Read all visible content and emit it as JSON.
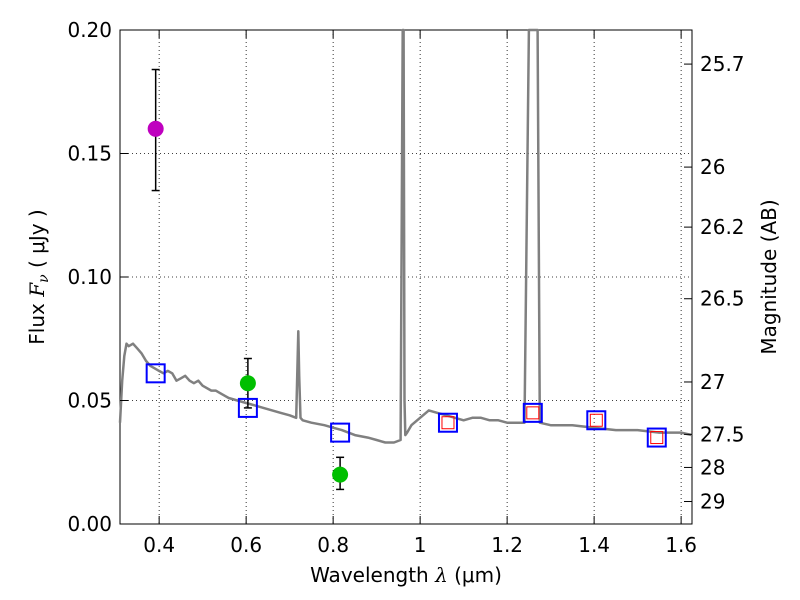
{
  "chart_data": {
    "type": "scatter",
    "xlabel": {
      "prefix": "Wavelength  ",
      "symbol": "λ",
      "suffix": " (μm)"
    },
    "ylabel": {
      "prefix": "Flux  ",
      "symbol": "F",
      "sub": "ν",
      "suffix": "  ( μJy )"
    },
    "y2label": "Magnitude (AB)",
    "xlim": [
      0.31,
      1.625
    ],
    "ylim": [
      0.0,
      0.2
    ],
    "x_ticks": [
      0.4,
      0.6,
      0.8,
      1.0,
      1.2,
      1.4,
      1.6
    ],
    "x_tick_labels": [
      "0.4",
      "0.6",
      "0.8",
      "1",
      "1.2",
      "1.4",
      "1.6"
    ],
    "y_ticks": [
      0.0,
      0.05,
      0.1,
      0.15,
      0.2
    ],
    "y_tick_labels": [
      "0.00",
      "0.05",
      "0.10",
      "0.15",
      "0.20"
    ],
    "y2_ticks": [
      {
        "label": "25.7",
        "flux": 0.1862
      },
      {
        "label": "26",
        "flux": 0.1445
      },
      {
        "label": "26.2",
        "flux": 0.1202
      },
      {
        "label": "26.5",
        "flux": 0.0912
      },
      {
        "label": "27",
        "flux": 0.0575
      },
      {
        "label": "27.5",
        "flux": 0.0363
      },
      {
        "label": "28",
        "flux": 0.0229
      },
      {
        "label": "29",
        "flux": 0.0091
      }
    ],
    "grid": true,
    "series": [
      {
        "style": "line",
        "color": "#808080",
        "x": [
          0.31,
          0.315,
          0.32,
          0.325,
          0.33,
          0.34,
          0.35,
          0.36,
          0.37,
          0.38,
          0.39,
          0.4,
          0.41,
          0.42,
          0.43,
          0.44,
          0.45,
          0.46,
          0.47,
          0.48,
          0.49,
          0.5,
          0.52,
          0.53,
          0.54,
          0.55,
          0.56,
          0.58,
          0.6,
          0.62,
          0.64,
          0.66,
          0.68,
          0.7,
          0.715,
          0.72,
          0.722,
          0.725,
          0.73,
          0.75,
          0.78,
          0.8,
          0.82,
          0.85,
          0.88,
          0.9,
          0.92,
          0.94,
          0.955,
          0.96,
          0.962,
          0.964,
          0.966,
          0.97,
          0.98,
          1.0,
          1.02,
          1.04,
          1.06,
          1.08,
          1.1,
          1.12,
          1.14,
          1.16,
          1.18,
          1.2,
          1.22,
          1.24,
          1.25,
          1.255,
          1.265,
          1.27,
          1.275,
          1.3,
          1.35,
          1.4,
          1.45,
          1.5,
          1.55,
          1.6,
          1.625
        ],
        "y": [
          0.041,
          0.058,
          0.068,
          0.073,
          0.072,
          0.073,
          0.071,
          0.069,
          0.066,
          0.064,
          0.063,
          0.062,
          0.061,
          0.062,
          0.061,
          0.058,
          0.059,
          0.06,
          0.058,
          0.057,
          0.058,
          0.056,
          0.054,
          0.054,
          0.053,
          0.052,
          0.051,
          0.05,
          0.049,
          0.048,
          0.047,
          0.046,
          0.045,
          0.044,
          0.043,
          0.078,
          0.06,
          0.043,
          0.042,
          0.041,
          0.04,
          0.039,
          0.038,
          0.036,
          0.035,
          0.034,
          0.033,
          0.033,
          0.034,
          0.2,
          0.2,
          0.05,
          0.036,
          0.037,
          0.04,
          0.043,
          0.046,
          0.045,
          0.044,
          0.043,
          0.042,
          0.043,
          0.043,
          0.042,
          0.042,
          0.041,
          0.041,
          0.041,
          0.2,
          0.2,
          0.2,
          0.2,
          0.041,
          0.04,
          0.04,
          0.039,
          0.038,
          0.038,
          0.037,
          0.037,
          0.036
        ]
      },
      {
        "style": "points",
        "marker": "circle",
        "color": "#bf00bf",
        "errorbars": true,
        "x": [
          0.392
        ],
        "y": [
          0.16
        ],
        "yerr": [
          [
            0.135,
            0.184
          ]
        ]
      },
      {
        "style": "points",
        "marker": "circle",
        "color": "#00bf00",
        "errorbars": true,
        "x": [
          0.604,
          0.816
        ],
        "y": [
          0.057,
          0.02
        ],
        "yerr": [
          [
            0.047,
            0.067
          ],
          [
            0.014,
            0.027
          ]
        ]
      },
      {
        "style": "points",
        "marker": "square",
        "color": "#0000ff",
        "x": [
          0.392,
          0.604,
          0.816,
          1.064,
          1.259,
          1.405,
          1.544
        ],
        "y": [
          0.061,
          0.047,
          0.037,
          0.041,
          0.045,
          0.042,
          0.035
        ]
      },
      {
        "style": "points",
        "marker": "square-small",
        "color": "#ff0000",
        "x": [
          1.064,
          1.259,
          1.405,
          1.544
        ],
        "y": [
          0.041,
          0.045,
          0.042,
          0.035
        ]
      }
    ]
  }
}
